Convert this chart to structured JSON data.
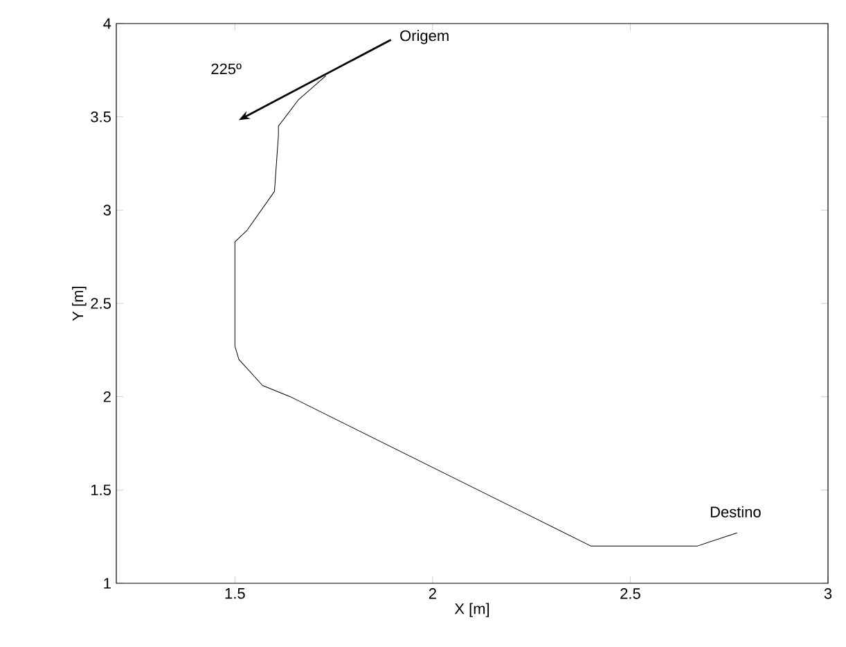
{
  "chart_data": {
    "type": "line",
    "xlabel": "X [m]",
    "ylabel": "Y [m]",
    "xlim": [
      1.2,
      3
    ],
    "ylim": [
      1,
      4
    ],
    "xticks": [
      1.5,
      2,
      2.5,
      3
    ],
    "yticks": [
      1,
      1.5,
      2,
      2.5,
      3,
      3.5,
      4
    ],
    "grid": false,
    "marker": "none",
    "line_style": "solid",
    "series": [
      {
        "color": "#000000",
        "x": [
          1.73,
          1.66,
          1.61,
          1.61,
          1.6,
          1.53,
          1.5,
          1.5,
          1.51,
          1.57,
          1.64,
          2.4,
          2.67,
          2.77
        ],
        "values": [
          3.72,
          3.59,
          3.45,
          3.4,
          3.1,
          2.89,
          2.83,
          2.27,
          2.2,
          2.06,
          2.0,
          1.2,
          1.2,
          1.27
        ]
      }
    ],
    "annotations": [
      "Origem",
      "225º",
      {
        "text": "Destino",
        "x": 2.78,
        "y": 1.27
      }
    ]
  }
}
